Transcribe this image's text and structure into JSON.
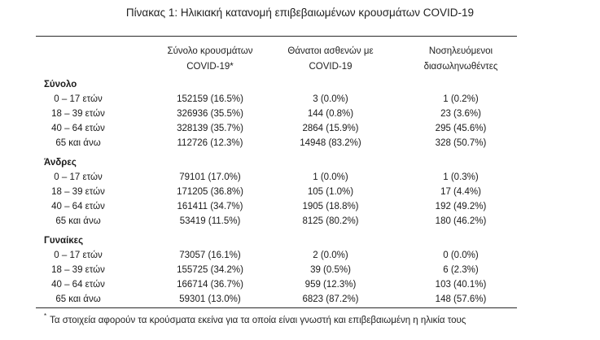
{
  "caption": "Πίνακας 1: Ηλικιακή κατανομή επιβεβαιωμένων κρουσμάτων COVID-19",
  "columns": [
    [
      "Σύνολο κρουσμάτων",
      "COVID-19*"
    ],
    [
      "Θάνατοι ασθενών με",
      "COVID-19"
    ],
    [
      "Νοσηλευόμενοι",
      "διασωληνωθέντες"
    ]
  ],
  "sections": [
    {
      "title": "Σύνολο",
      "rows": [
        {
          "age": "0 – 17 ετών",
          "cases": "152159 (16.5%)",
          "deaths": "3 (0.0%)",
          "intubated": "1 (0.2%)"
        },
        {
          "age": "18 – 39 ετών",
          "cases": "326936 (35.5%)",
          "deaths": "144 (0.8%)",
          "intubated": "23 (3.6%)"
        },
        {
          "age": "40 – 64 ετών",
          "cases": "328139 (35.7%)",
          "deaths": "2864 (15.9%)",
          "intubated": "295 (45.6%)"
        },
        {
          "age": "65 και άνω",
          "cases": "112726 (12.3%)",
          "deaths": "14948 (83.2%)",
          "intubated": "328 (50.7%)"
        }
      ]
    },
    {
      "title": "Άνδρες",
      "rows": [
        {
          "age": "0 – 17 ετών",
          "cases": "79101 (17.0%)",
          "deaths": "1 (0.0%)",
          "intubated": "1 (0.3%)"
        },
        {
          "age": "18 – 39 ετών",
          "cases": "171205 (36.8%)",
          "deaths": "105 (1.0%)",
          "intubated": "17 (4.4%)"
        },
        {
          "age": "40 – 64 ετών",
          "cases": "161411 (34.7%)",
          "deaths": "1905 (18.8%)",
          "intubated": "192 (49.2%)"
        },
        {
          "age": "65 και άνω",
          "cases": "53419 (11.5%)",
          "deaths": "8125 (80.2%)",
          "intubated": "180 (46.2%)"
        }
      ]
    },
    {
      "title": "Γυναίκες",
      "rows": [
        {
          "age": "0 – 17 ετών",
          "cases": "73057 (16.1%)",
          "deaths": "2 (0.0%)",
          "intubated": "0 (0.0%)"
        },
        {
          "age": "18 – 39 ετών",
          "cases": "155725 (34.2%)",
          "deaths": "39 (0.5%)",
          "intubated": "6 (2.3%)"
        },
        {
          "age": "40 – 64 ετών",
          "cases": "166714 (36.7%)",
          "deaths": "959 (12.3%)",
          "intubated": "103 (40.1%)"
        },
        {
          "age": "65 και άνω",
          "cases": "59301 (13.0%)",
          "deaths": "6823 (87.2%)",
          "intubated": "148 (57.6%)"
        }
      ]
    }
  ],
  "footnote": {
    "mark": "*",
    "text": "Τα στοιχεία αφορούν τα κρούσματα εκείνα για τα οποία είναι γνωστή και επιβεβαιωμένη η ηλικία τους"
  }
}
